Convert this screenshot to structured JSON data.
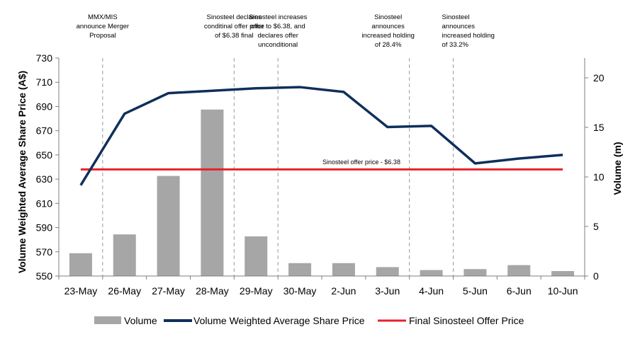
{
  "chart_data": {
    "type": "bar+line",
    "categories": [
      "23-May",
      "26-May",
      "27-May",
      "28-May",
      "29-May",
      "30-May",
      "2-Jun",
      "3-Jun",
      "4-Jun",
      "5-Jun",
      "6-Jun",
      "10-Jun"
    ],
    "series": [
      {
        "name": "Volume",
        "type": "bar",
        "axis": "right",
        "color": "#a6a6a6",
        "values": [
          2.3,
          4.2,
          10.1,
          16.8,
          4.0,
          1.3,
          1.3,
          0.9,
          0.6,
          0.7,
          1.1,
          0.5
        ]
      },
      {
        "name": "Volume Weighted Average Share Price",
        "type": "line",
        "axis": "left",
        "color": "#0f2f5a",
        "values": [
          625,
          684,
          701,
          703,
          705,
          706,
          702,
          673,
          674,
          643,
          647,
          650
        ]
      },
      {
        "name": "Final Sinosteel Offer Price",
        "type": "line",
        "axis": "left",
        "color": "#e8202a",
        "values": [
          638,
          638,
          638,
          638,
          638,
          638,
          638,
          638,
          638,
          638,
          638,
          638
        ]
      }
    ],
    "ylabel": "Volume Weighted Average Share Price (A$)",
    "y2label": "Volume (m)",
    "ylim": [
      550,
      730
    ],
    "yticks": [
      550,
      570,
      590,
      610,
      630,
      650,
      670,
      690,
      710,
      730
    ],
    "y2lim": [
      0,
      22
    ],
    "y2ticks": [
      0,
      5,
      10,
      15,
      20
    ],
    "offer_label": "Sinosteel offer price - $6.38",
    "annotations": [
      {
        "after": "23-May",
        "lines": [
          "MMX/MIS",
          "announce Merger",
          "Proposal"
        ]
      },
      {
        "after": "28-May",
        "lines": [
          "Sinosteel declares",
          "conditinal offer price",
          "of $6.38 final"
        ]
      },
      {
        "after": "29-May",
        "lines": [
          "Sinosteel increases",
          "offer to $6.38, and",
          "declares offer",
          "unconditional"
        ]
      },
      {
        "after": "3-Jun",
        "lines": [
          "Sinosteel",
          "announces",
          "increased holding",
          "of 28.4%"
        ]
      },
      {
        "after": "4-Jun",
        "lines": [
          "Sinosteel",
          "announces",
          "increased holding",
          "of 33.2%"
        ]
      }
    ],
    "legend": [
      "Volume",
      "Volume Weighted Average Share Price",
      "Final Sinosteel Offer Price"
    ],
    "legend_position": "bottom",
    "grid": false
  }
}
